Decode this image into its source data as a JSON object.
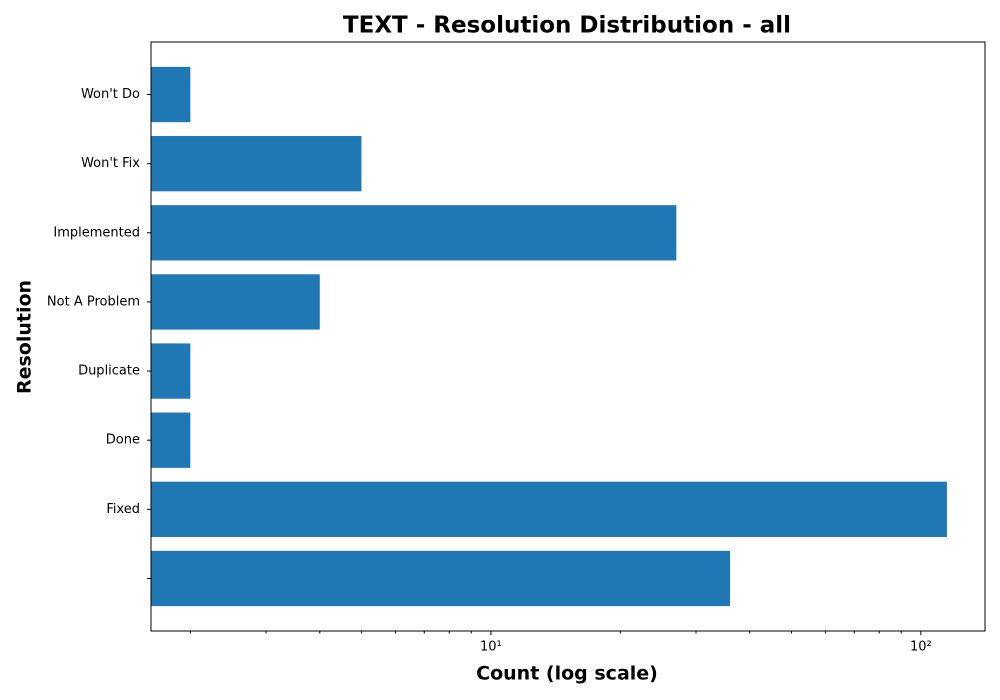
{
  "chart_data": {
    "type": "bar",
    "orientation": "horizontal",
    "title": "TEXT - Resolution Distribution - all",
    "xlabel": "Count (log scale)",
    "ylabel": "Resolution",
    "categories": [
      null,
      "Fixed",
      "Done",
      "Duplicate",
      "Not A Problem",
      "Implemented",
      "Won't Fix",
      "Won't Do"
    ],
    "values": [
      36,
      115,
      2,
      2,
      4,
      27,
      5,
      2
    ],
    "color": "#1f77b4",
    "xscale": "log",
    "xlim": [
      1.62,
      141
    ],
    "xticks": [
      {
        "value": 10,
        "label": "10¹"
      },
      {
        "value": 100,
        "label": "10²"
      }
    ],
    "minor_xticks": [
      2,
      3,
      4,
      5,
      6,
      7,
      8,
      9,
      20,
      30,
      40,
      50,
      60,
      70,
      80,
      90
    ],
    "grid": false
  }
}
